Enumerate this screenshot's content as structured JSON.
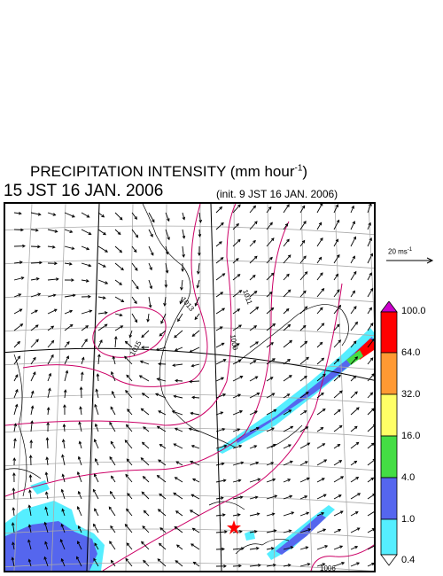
{
  "title": {
    "text": "PRECIPITATION INTENSITY (mm hour",
    "exponent": "-1",
    "suffix": ")"
  },
  "valid_time": "15 JST 16 JAN. 2006",
  "init_time": "(init. 9 JST 16 JAN. 2006)",
  "wind_reference": {
    "value": "20 ms",
    "exponent": "-1"
  },
  "colorbar": {
    "labels": [
      "100.0",
      "64.0",
      "32.0",
      "16.0",
      "4.0",
      "1.0",
      "0.4"
    ],
    "colors": [
      "#cc00cc",
      "#ff0000",
      "#ff9933",
      "#ffff66",
      "#44dd44",
      "#5566ee",
      "#55eeff",
      "#ffffff"
    ]
  },
  "isobars": [
    {
      "label": "1015"
    },
    {
      "label": "1013"
    },
    {
      "label": "1011"
    },
    {
      "label": "1009"
    },
    {
      "label": "1006"
    }
  ],
  "markers": [
    {
      "type": "red-star"
    }
  ]
}
